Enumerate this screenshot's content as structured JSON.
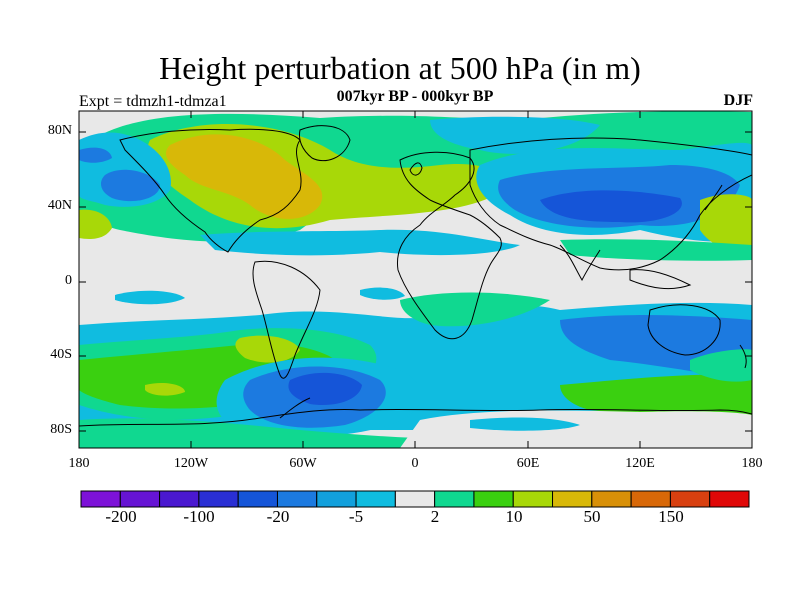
{
  "title": "Height perturbation at 500 hPa (in m)",
  "left_string": "Expt = tdmzh1-tdmza1",
  "center_string": "007kyr BP - 000kyr BP",
  "right_string": "DJF",
  "lat_ticks": [
    "80N",
    "40N",
    "0",
    "40S",
    "80S"
  ],
  "lon_ticks": [
    "180",
    "120W",
    "60W",
    "0",
    "60E",
    "120E",
    "180"
  ],
  "colorbar": {
    "colors": [
      "#7d12d8",
      "#6614d4",
      "#4a18d0",
      "#2a2fd4",
      "#1555d8",
      "#1c7ae0",
      "#12a0dc",
      "#10bce0",
      "#e8e8e8",
      "#10d890",
      "#3ad010",
      "#a8d808",
      "#d8b808",
      "#d89008",
      "#d86808",
      "#d84010",
      "#e00808"
    ],
    "labels": [
      "-200",
      "-100",
      "-20",
      "-5",
      "2",
      "10",
      "50",
      "150"
    ]
  },
  "map_colors": {
    "neutral": "#e8e8e8",
    "c_neg5": "#10bce0",
    "c_neg20": "#1c7ae0",
    "c_neg100": "#1555d8",
    "c_pos2": "#10d890",
    "c_pos10": "#3ad010",
    "c_pos50": "#a8d808",
    "c_pos150": "#d8b808"
  }
}
